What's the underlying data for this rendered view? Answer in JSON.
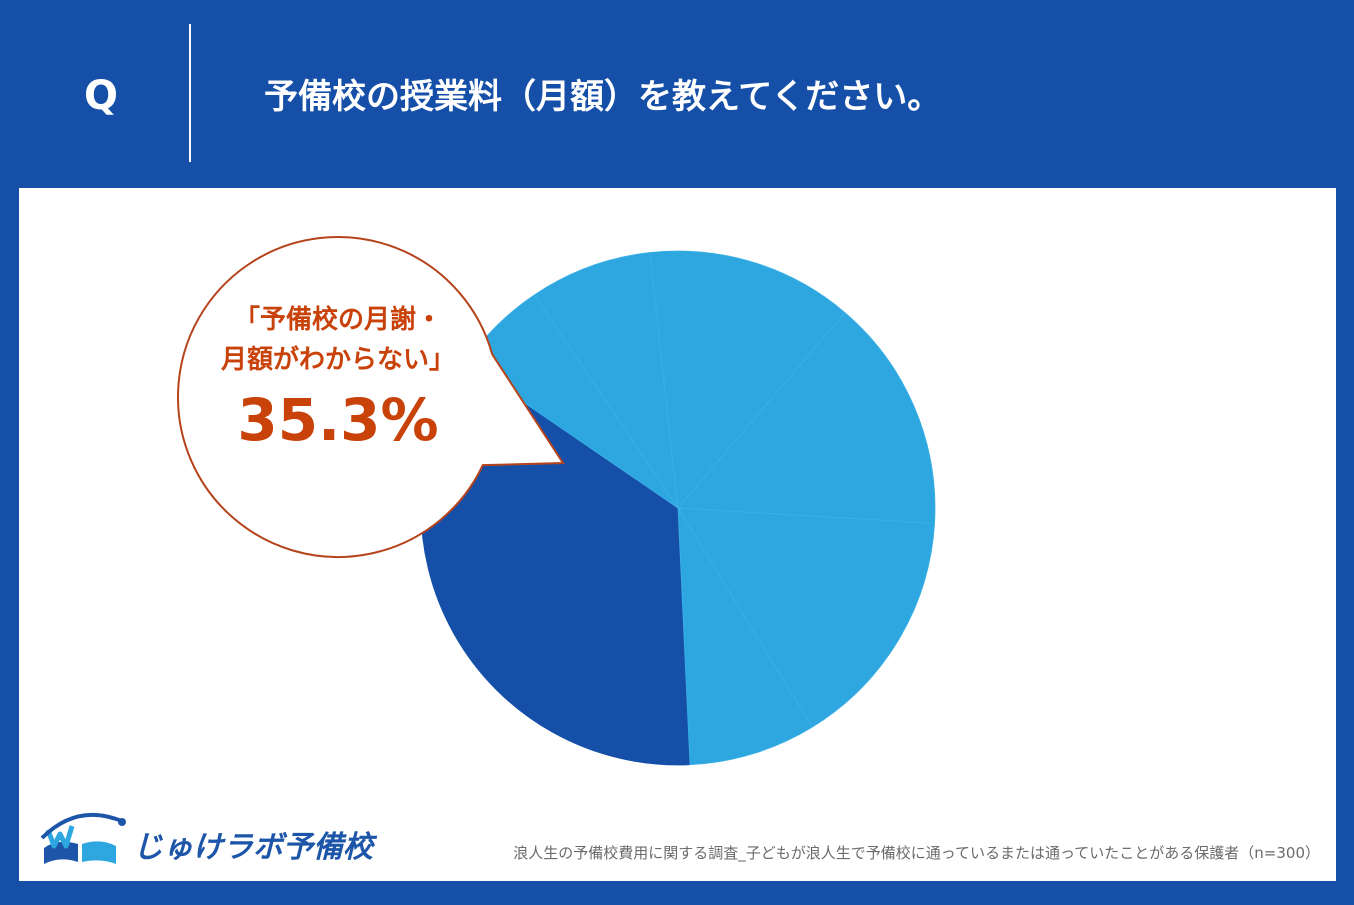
{
  "header": {
    "q_mark": "Q",
    "question": "予備校の授業料（月額）を教えてください。"
  },
  "callout": {
    "label_line1": "「予備校の月謝・",
    "label_line2": "月額がわからない」",
    "value": "35.3%"
  },
  "chart_data": {
    "type": "pie",
    "title": "",
    "slices": [
      {
        "value": 35.3,
        "color": "#154fa8"
      },
      {
        "value": 6.0,
        "color": "#2ea7e0"
      },
      {
        "value": 7.7,
        "color": "#2ea7e0"
      },
      {
        "value": 13.0,
        "color": "#2ea7e0"
      },
      {
        "value": 14.7,
        "color": "#2ea7e0"
      },
      {
        "value": 15.3,
        "color": "#2ea7e0"
      },
      {
        "value": 8.0,
        "color": "#2ea7e0"
      }
    ],
    "start_slice_label": "「予備校の月謝・月額がわからない」",
    "highlight_color": "#154fa8",
    "other_color": "#2ea7e0"
  },
  "footer": {
    "logo_text": "じゅけラボ予備校",
    "source": "浪人生の予備校費用に関する調査_子どもが浪人生で予備校に通っているまたは通っていたことがある保護者（n=300）"
  },
  "colors": {
    "background": "#154fa8",
    "panel": "#ffffff",
    "callout_text": "#c8420a",
    "callout_border": "#b5441c"
  }
}
